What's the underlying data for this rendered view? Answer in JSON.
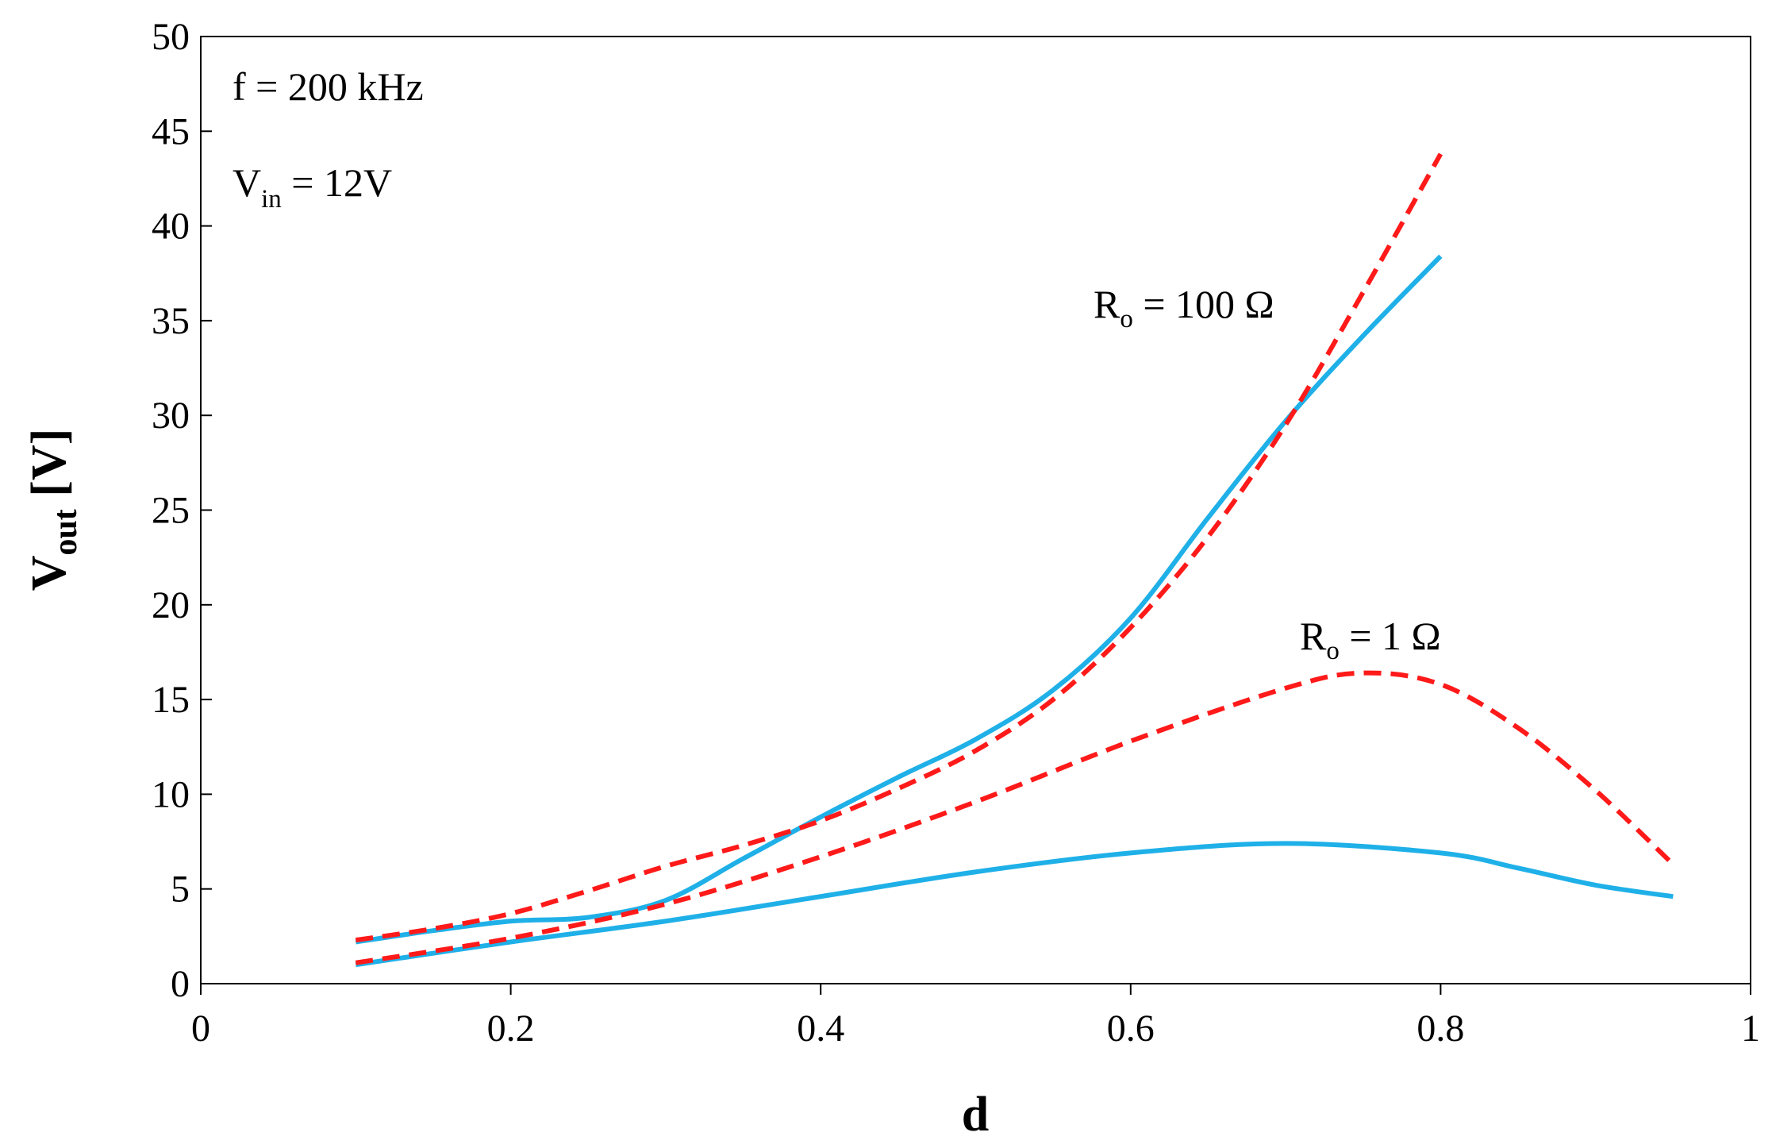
{
  "chart_data": {
    "type": "line",
    "title": "",
    "xlabel": "d",
    "ylabel": {
      "main": "V",
      "sub": "out",
      "unit": " [V]"
    },
    "xlim": [
      0,
      1
    ],
    "ylim": [
      0,
      50
    ],
    "xticks": [
      0,
      0.2,
      0.4,
      0.6,
      0.8,
      1
    ],
    "xtick_labels": [
      "0",
      "0.2",
      "0.4",
      "0.6",
      "0.8",
      "1"
    ],
    "yticks": [
      0,
      5,
      10,
      15,
      20,
      25,
      30,
      35,
      40,
      45,
      50
    ],
    "ytick_labels": [
      "0",
      "5",
      "10",
      "15",
      "20",
      "25",
      "30",
      "35",
      "40",
      "45",
      "50"
    ],
    "grid": false,
    "series": [
      {
        "name": "Ro = 100 Ω (solid)",
        "color": "#1fb0e8",
        "style": "solid",
        "x": [
          0.1,
          0.15,
          0.2,
          0.25,
          0.3,
          0.35,
          0.4,
          0.45,
          0.5,
          0.55,
          0.6,
          0.65,
          0.7,
          0.75,
          0.8
        ],
        "y": [
          2.2,
          2.8,
          3.3,
          3.5,
          4.4,
          6.6,
          8.8,
          10.9,
          12.9,
          15.5,
          19.3,
          24.6,
          29.7,
          34.2,
          38.4
        ]
      },
      {
        "name": "Ro = 100 Ω (dashed)",
        "color": "#ff1a1a",
        "style": "dashed",
        "x": [
          0.1,
          0.15,
          0.2,
          0.25,
          0.3,
          0.35,
          0.4,
          0.45,
          0.5,
          0.55,
          0.6,
          0.65,
          0.7,
          0.75,
          0.8
        ],
        "y": [
          2.3,
          2.9,
          3.7,
          4.9,
          6.2,
          7.3,
          8.6,
          10.3,
          12.3,
          15.0,
          18.8,
          23.6,
          29.5,
          36.5,
          43.8
        ]
      },
      {
        "name": "Ro = 1 Ω (solid)",
        "color": "#1fb0e8",
        "style": "solid",
        "x": [
          0.1,
          0.2,
          0.3,
          0.4,
          0.5,
          0.6,
          0.7,
          0.8,
          0.85,
          0.9,
          0.95
        ],
        "y": [
          1.0,
          2.2,
          3.3,
          4.6,
          5.9,
          6.9,
          7.4,
          6.9,
          6.1,
          5.2,
          4.6
        ]
      },
      {
        "name": "Ro = 1 Ω (dashed)",
        "color": "#ff1a1a",
        "style": "dashed",
        "x": [
          0.1,
          0.2,
          0.3,
          0.4,
          0.5,
          0.6,
          0.7,
          0.75,
          0.8,
          0.85,
          0.9,
          0.95
        ],
        "y": [
          1.1,
          2.4,
          4.2,
          6.7,
          9.6,
          12.8,
          15.6,
          16.4,
          15.8,
          13.5,
          10.2,
          6.3
        ]
      }
    ],
    "annotations": {
      "freq": "f = 200 kHz",
      "vin": {
        "main": "V",
        "sub": "in",
        "rest": " = 12V"
      },
      "ro100": {
        "main": "R",
        "sub": "o",
        "rest": " = 100 Ω"
      },
      "ro1": {
        "main": "R",
        "sub": "o",
        "rest": " = 1 Ω"
      }
    }
  }
}
